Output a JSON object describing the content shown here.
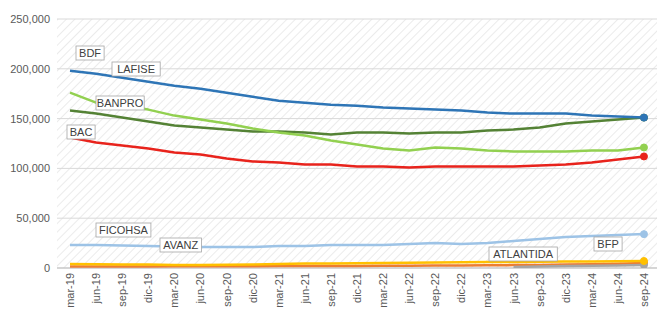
{
  "chart_data": {
    "type": "line",
    "categories": [
      "mar-19",
      "jun-19",
      "sep-19",
      "dic-19",
      "mar-20",
      "jun-20",
      "sep-20",
      "dic-20",
      "mar-21",
      "jun-21",
      "sep-21",
      "dic-21",
      "mar-22",
      "jun-22",
      "sep-22",
      "dic-22",
      "mar-23",
      "jun-23",
      "sep-23",
      "dic-23",
      "mar-24",
      "jun-24",
      "sep-24"
    ],
    "series": [
      {
        "name": "BDF",
        "color": "#2e75b6",
        "values": [
          198000,
          195000,
          191000,
          187000,
          183000,
          180000,
          176000,
          172000,
          168000,
          166000,
          164000,
          163000,
          161000,
          160000,
          159000,
          158000,
          156000,
          155000,
          155000,
          155000,
          153000,
          152000,
          151000
        ]
      },
      {
        "name": "LAFISE",
        "color": "#92d050",
        "values": [
          176000,
          166000,
          163000,
          159000,
          153000,
          149000,
          145000,
          140000,
          136000,
          133000,
          128000,
          124000,
          120000,
          118000,
          121000,
          120000,
          118000,
          117000,
          117000,
          117000,
          118000,
          118000,
          121000
        ]
      },
      {
        "name": "BANPRO",
        "color": "#548235",
        "values": [
          158000,
          155000,
          151000,
          147000,
          143000,
          141000,
          139000,
          137000,
          137000,
          136000,
          134000,
          136000,
          136000,
          135000,
          136000,
          136000,
          138000,
          139000,
          141000,
          145000,
          147000,
          149000,
          151000
        ]
      },
      {
        "name": "BAC",
        "color": "#e8231c",
        "values": [
          131000,
          126000,
          123000,
          120000,
          116000,
          114000,
          110000,
          107000,
          106000,
          104000,
          104000,
          102000,
          102000,
          101000,
          102000,
          102000,
          102000,
          102000,
          103000,
          104000,
          106000,
          109000,
          112000
        ]
      },
      {
        "name": "FICOHSA",
        "color": "#9dc3e6",
        "values": [
          23000,
          23000,
          22500,
          22000,
          21500,
          21000,
          21000,
          21000,
          22000,
          22000,
          23000,
          23000,
          23000,
          24000,
          25000,
          24000,
          25000,
          27000,
          29000,
          31000,
          32000,
          33000,
          34000
        ]
      },
      {
        "name": "AVANZ",
        "color": "#ffc000",
        "values": [
          4000,
          3800,
          3500,
          3500,
          3000,
          3000,
          3200,
          3500,
          4000,
          4500,
          4500,
          4800,
          5000,
          5200,
          5500,
          5800,
          6000,
          6000,
          6200,
          6500,
          6500,
          6800,
          7000
        ]
      },
      {
        "name": "ATLANTIDA",
        "color": "#a5a5a5",
        "values": [
          null,
          null,
          null,
          null,
          null,
          null,
          null,
          null,
          null,
          null,
          null,
          null,
          null,
          null,
          null,
          null,
          null,
          1000,
          1500,
          2000,
          2300,
          2600,
          3000
        ]
      },
      {
        "name": "BFP",
        "color": "#ed7d31",
        "values": [
          1500,
          1500,
          1600,
          1600,
          1700,
          1700,
          1800,
          1800,
          1900,
          2000,
          2000,
          2100,
          2200,
          2300,
          2400,
          2500,
          2700,
          2900,
          3100,
          3400,
          3800,
          4300,
          5000
        ]
      }
    ],
    "ylim": [
      0,
      250000
    ],
    "yticks": [
      0,
      {
        "value": 50000,
        "label": "50,000"
      },
      {
        "value": 100000,
        "label": "100,000"
      },
      {
        "value": 150000,
        "label": "150,000"
      },
      {
        "value": 200000,
        "label": "200,000"
      },
      {
        "value": 250000,
        "label": "250,000"
      }
    ],
    "grid": true
  }
}
